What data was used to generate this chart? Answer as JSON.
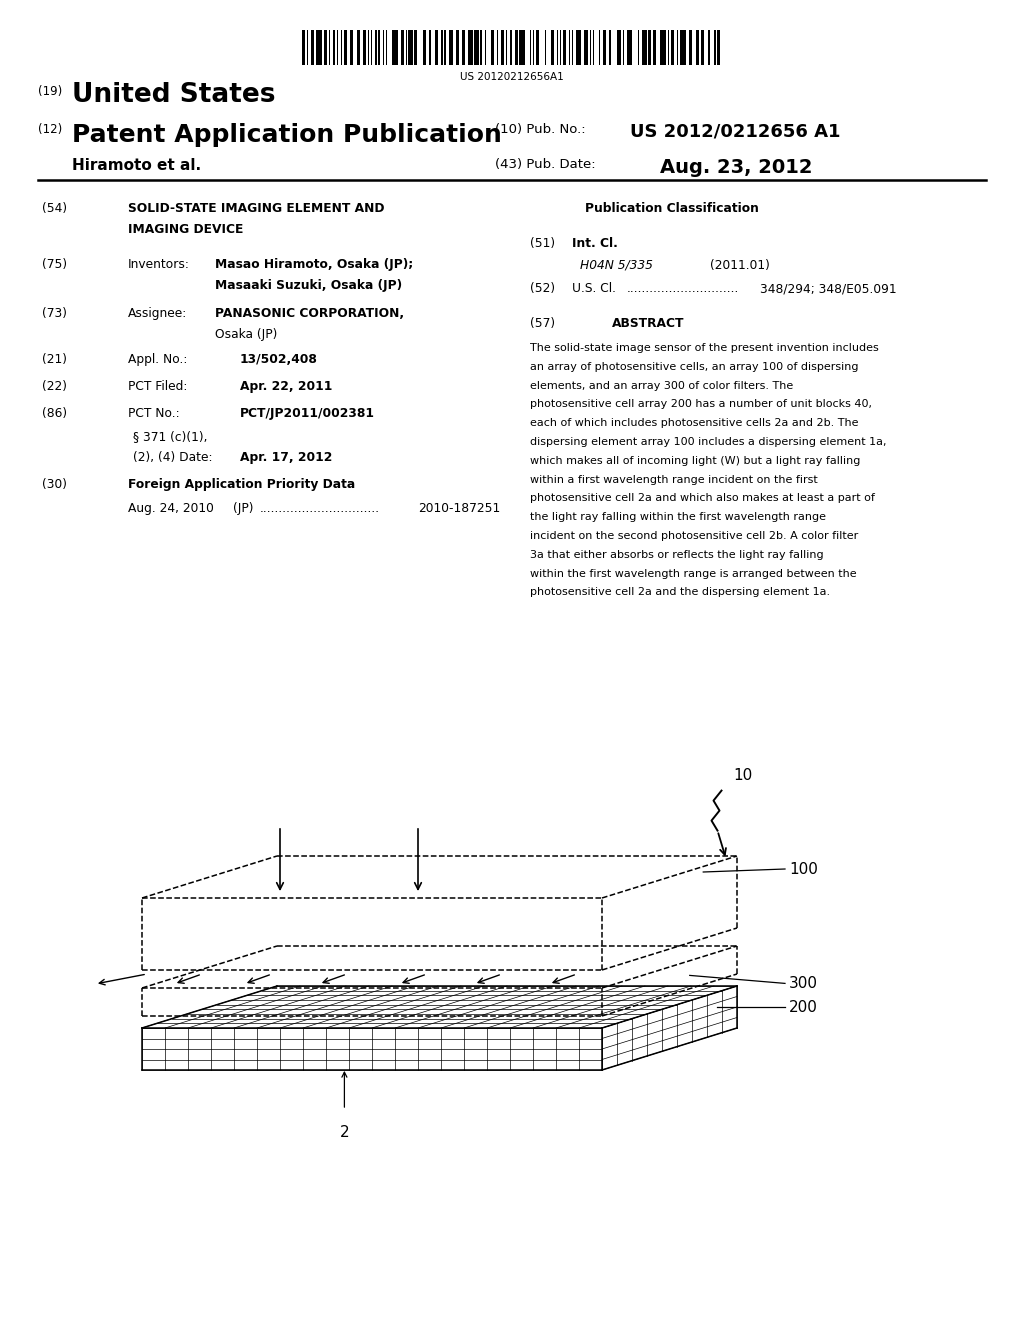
{
  "background_color": "#ffffff",
  "page_width": 10.24,
  "page_height": 13.2,
  "barcode_text": "US 20120212656A1",
  "header_19": "(19)",
  "header_united_states": "United States",
  "header_12": "(12)",
  "header_patent": "Patent Application Publication",
  "header_hiramoto": "Hiramoto et al.",
  "header_10": "(10) Pub. No.:",
  "header_pubno": "US 2012/0212656 A1",
  "header_43": "(43) Pub. Date:",
  "header_date": "Aug. 23, 2012",
  "title_54": "(54)",
  "title_text1": "SOLID-STATE IMAGING ELEMENT AND",
  "title_text2": "IMAGING DEVICE",
  "inv_75": "(75)",
  "inv_label": "Inventors:",
  "inv_text1": "Masao Hiramoto, Osaka (JP);",
  "inv_text2": "Masaaki Suzuki, Osaka (JP)",
  "asgn_73": "(73)",
  "asgn_label": "Assignee:",
  "asgn_text1": "PANASONIC CORPORATION,",
  "asgn_text2": "Osaka (JP)",
  "appl_21": "(21)",
  "appl_label": "Appl. No.:",
  "appl_text": "13/502,408",
  "pct_22": "(22)",
  "pct_label": "PCT Filed:",
  "pct_text": "Apr. 22, 2011",
  "pctno_86": "(86)",
  "pctno_label": "PCT No.:",
  "pctno_text": "PCT/JP2011/002381",
  "pct_sub1": "§ 371 (c)(1),",
  "pct_sub2": "(2), (4) Date:",
  "pct_sub_date": "Apr. 17, 2012",
  "foreign_30": "(30)",
  "foreign_label": "Foreign Application Priority Data",
  "foreign_date": "Aug. 24, 2010",
  "foreign_country": "(JP)",
  "foreign_dots": "...............................",
  "foreign_number": "2010-187251",
  "pub_class": "Publication Classification",
  "int_51": "(51)",
  "int_label": "Int. Cl.",
  "int_code": "H04N 5/335",
  "int_year": "(2011.01)",
  "us_52": "(52)",
  "us_label": "U.S. Cl.",
  "us_dots": ".............................",
  "us_codes": "348/294; 348/E05.091",
  "abs_57": "(57)",
  "abs_title": "ABSTRACT",
  "abs_text": "The solid-state image sensor of the present invention includes an array of photosensitive cells, an array 100 of dispersing elements, and an array 300 of color filters. The photosensitive cell array 200 has a number of unit blocks 40, each of which includes photosensitive cells 2a and 2b. The dispersing element array 100 includes a dispersing element 1a, which makes all of incoming light (W) but a light ray falling within a first wavelength range incident on the first photosensitive cell 2a and which also makes at least a part of the light ray falling within the first wavelength range incident on the second photosensitive cell 2b. A color filter 3a that either absorbs or reflects the light ray falling within the first wavelength range is arranged between the photosensitive cell 2a and the dispersing element 1a.",
  "lbl_10": "10",
  "lbl_100": "100",
  "lbl_300": "300",
  "lbl_200": "200",
  "lbl_2": "2"
}
